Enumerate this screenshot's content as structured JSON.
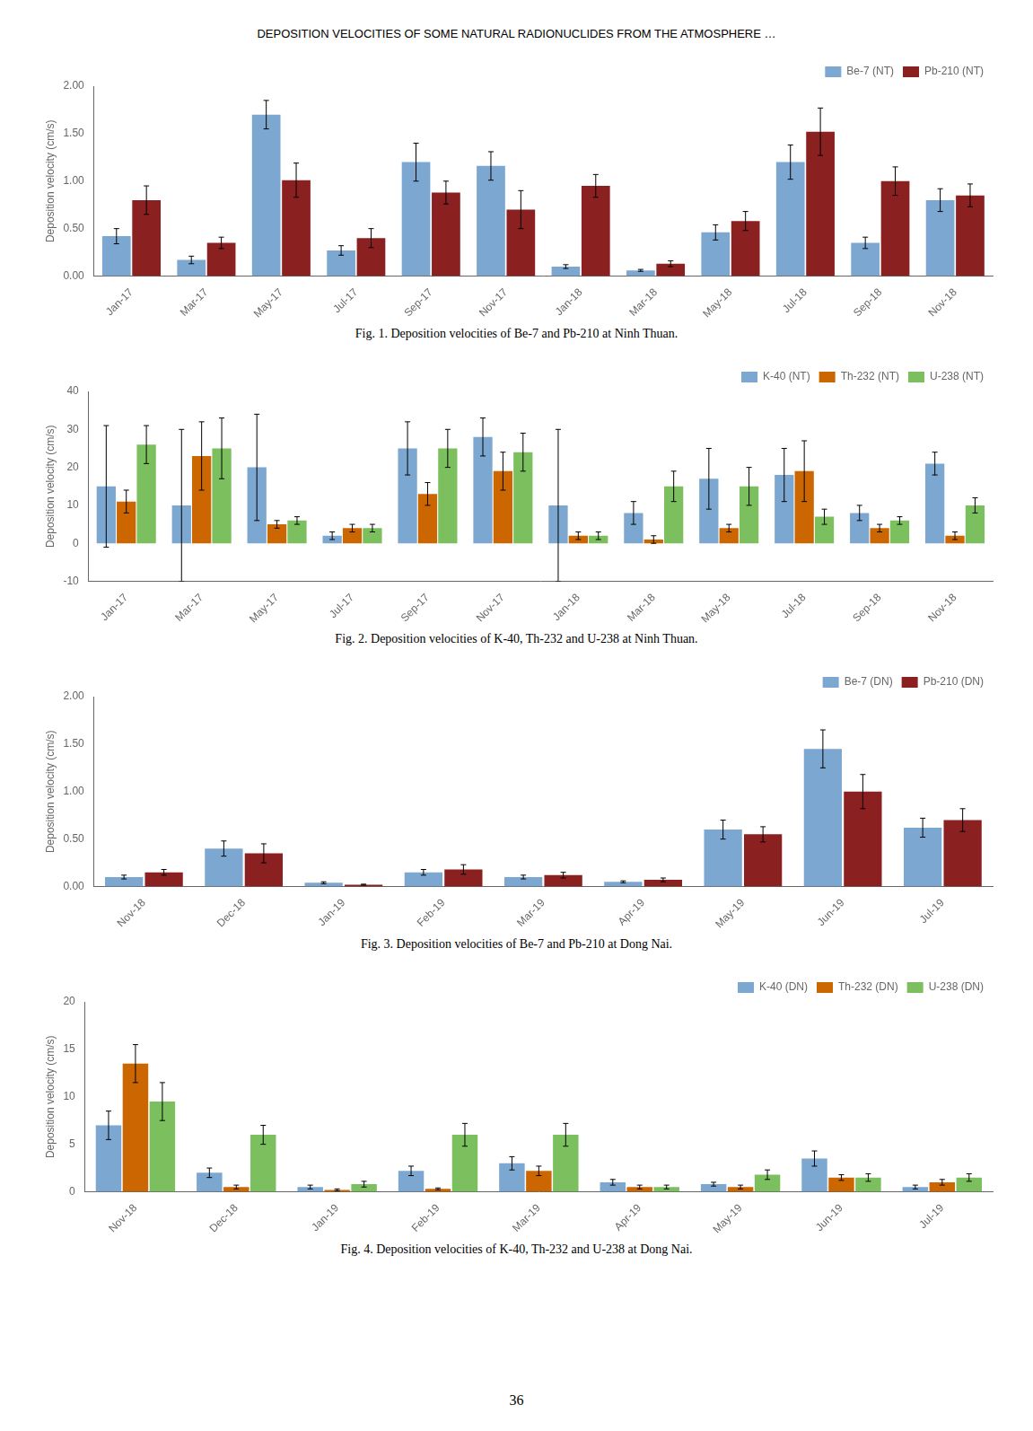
{
  "title": "DEPOSITION VELOCITIES OF SOME NATURAL RADIONUCLIDES FROM THE ATMOSPHERE …",
  "annotations": [
    "36"
  ],
  "chart_data": [
    {
      "type": "bar",
      "title": "Fig. 1. Deposition velocities of Be-7 and Pb-210 at Ninh Thuan.",
      "categories": [
        "Jan-17",
        "Mar-17",
        "May-17",
        "Jul-17",
        "Sep-17",
        "Nov-17",
        "Jan-18",
        "Mar-18",
        "May-18",
        "Jul-18",
        "Sep-18",
        "Nov-18"
      ],
      "series": [
        {
          "name": "Be-7 (NT)",
          "color": "#7BA7D0",
          "values": [
            0.42,
            0.17,
            1.7,
            0.27,
            1.2,
            1.16,
            0.1,
            0.06,
            0.46,
            1.2,
            0.35,
            0.8
          ],
          "errors": [
            0.08,
            0.04,
            0.15,
            0.05,
            0.2,
            0.15,
            0.02,
            0.01,
            0.08,
            0.18,
            0.06,
            0.12
          ]
        },
        {
          "name": "Pb-210 (NT)",
          "color": "#8B2020",
          "values": [
            0.8,
            0.35,
            1.01,
            0.4,
            0.88,
            0.7,
            0.95,
            0.13,
            0.58,
            1.52,
            1.0,
            0.85
          ],
          "errors": [
            0.15,
            0.06,
            0.18,
            0.1,
            0.12,
            0.2,
            0.12,
            0.03,
            0.1,
            0.25,
            0.15,
            0.12
          ]
        }
      ],
      "ylabel": "Deposition velocity (cm/s)",
      "ylim": [
        0,
        2.0
      ],
      "yticks": [
        {
          "value": 0,
          "label": "0.00"
        },
        {
          "value": 0.5,
          "label": "0.50"
        },
        {
          "value": 1.0,
          "label": "1.00"
        },
        {
          "value": 1.5,
          "label": "1.50"
        },
        {
          "value": 2.0,
          "label": "2.00"
        }
      ],
      "grid": false,
      "legend": "upper right"
    },
    {
      "type": "bar",
      "title": "Fig. 2. Deposition velocities of K-40, Th-232 and U-238 at Ninh Thuan.",
      "categories": [
        "Jan-17",
        "Mar-17",
        "May-17",
        "Jul-17",
        "Sep-17",
        "Nov-17",
        "Jan-18",
        "Mar-18",
        "May-18",
        "Jul-18",
        "Sep-18",
        "Nov-18"
      ],
      "series": [
        {
          "name": "K-40 (NT)",
          "color": "#7BA7D0",
          "values": [
            15,
            10,
            20,
            2,
            25,
            28,
            10,
            8,
            17,
            18,
            8,
            21
          ],
          "errors": [
            16,
            20,
            14,
            1,
            7,
            5,
            20,
            3,
            8,
            7,
            2,
            3
          ]
        },
        {
          "name": "Th-232 (NT)",
          "color": "#CC6600",
          "values": [
            11,
            23,
            5,
            4,
            13,
            19,
            2,
            1,
            4,
            19,
            4,
            2
          ],
          "errors": [
            3,
            9,
            1,
            1,
            3,
            5,
            1,
            1,
            1,
            8,
            1,
            1
          ]
        },
        {
          "name": "U-238 (NT)",
          "color": "#7BBF5F",
          "values": [
            26,
            25,
            6,
            4,
            25,
            24,
            2,
            15,
            15,
            7,
            6,
            10
          ],
          "errors": [
            5,
            8,
            1,
            1,
            5,
            5,
            1,
            4,
            5,
            2,
            1,
            2
          ]
        }
      ],
      "ylabel": "Deposition velocity (cm/s)",
      "ylim": [
        -10,
        40
      ],
      "yticks": [
        -10,
        0,
        10,
        20,
        30,
        40
      ],
      "grid": false,
      "legend": "upper right"
    },
    {
      "type": "bar",
      "title": "Fig. 3. Deposition velocities of Be-7 and Pb-210 at Dong Nai.",
      "categories": [
        "Nov-18",
        "Dec-18",
        "Jan-19",
        "Feb-19",
        "Mar-19",
        "Apr-19",
        "May-19",
        "Jun-19",
        "Jul-19"
      ],
      "series": [
        {
          "name": "Be-7 (DN)",
          "color": "#7BA7D0",
          "values": [
            0.1,
            0.4,
            0.04,
            0.15,
            0.1,
            0.05,
            0.6,
            1.45,
            0.62
          ],
          "errors": [
            0.02,
            0.08,
            0.01,
            0.03,
            0.02,
            0.01,
            0.1,
            0.2,
            0.1
          ]
        },
        {
          "name": "Pb-210 (DN)",
          "color": "#8B2020",
          "values": [
            0.15,
            0.35,
            0.02,
            0.18,
            0.12,
            0.07,
            0.55,
            1.0,
            0.7
          ],
          "errors": [
            0.03,
            0.1,
            0.005,
            0.05,
            0.03,
            0.02,
            0.08,
            0.18,
            0.12
          ]
        }
      ],
      "ylabel": "Deposition velocity (cm/s)",
      "ylim": [
        0,
        2.0
      ],
      "yticks": [
        {
          "value": 0,
          "label": "0.00"
        },
        {
          "value": 0.5,
          "label": "0.50"
        },
        {
          "value": 1.0,
          "label": "1.00"
        },
        {
          "value": 1.5,
          "label": "1.50"
        },
        {
          "value": 2.0,
          "label": "2.00"
        }
      ],
      "grid": false,
      "legend": "upper right"
    },
    {
      "type": "bar",
      "title": "Fig. 4. Deposition velocities of K-40, Th-232 and U-238 at Dong Nai.",
      "categories": [
        "Nov-18",
        "Dec-18",
        "Jan-19",
        "Feb-19",
        "Mar-19",
        "Apr-19",
        "May-19",
        "Jun-19",
        "Jul-19"
      ],
      "series": [
        {
          "name": "K-40 (DN)",
          "color": "#7BA7D0",
          "values": [
            7.0,
            2.0,
            0.5,
            2.2,
            3.0,
            1.0,
            0.8,
            3.5,
            0.5
          ],
          "errors": [
            1.5,
            0.5,
            0.2,
            0.5,
            0.7,
            0.3,
            0.2,
            0.8,
            0.2
          ]
        },
        {
          "name": "Th-232 (DN)",
          "color": "#CC6600",
          "values": [
            13.5,
            0.5,
            0.2,
            0.3,
            2.2,
            0.5,
            0.5,
            1.5,
            1.0
          ],
          "errors": [
            2.0,
            0.2,
            0.1,
            0.1,
            0.5,
            0.2,
            0.2,
            0.3,
            0.3
          ]
        },
        {
          "name": "U-238 (DN)",
          "color": "#7BBF5F",
          "values": [
            9.5,
            6.0,
            0.8,
            6.0,
            6.0,
            0.5,
            1.8,
            1.5,
            1.5
          ],
          "errors": [
            2.0,
            1.0,
            0.3,
            1.2,
            1.2,
            0.2,
            0.5,
            0.4,
            0.4
          ]
        }
      ],
      "ylabel": "Deposition velocity (cm/s)",
      "ylim": [
        0,
        20
      ],
      "yticks": [
        0,
        5,
        10,
        15,
        20
      ],
      "grid": false,
      "legend": "upper right"
    }
  ]
}
